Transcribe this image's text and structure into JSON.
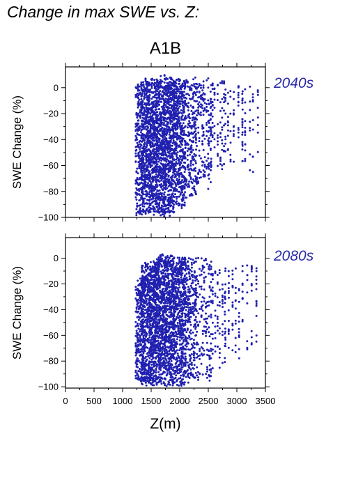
{
  "header": {
    "title": "Change in max SWE vs. Z:",
    "scenario": "A1B"
  },
  "colors": {
    "points": "#2020b0",
    "label": "#2a2aa8",
    "axis": "#000000"
  },
  "chart_data": [
    {
      "type": "scatter",
      "label": "2040s",
      "ylabel": "SWE Change (%)",
      "xlabel": "",
      "xlim": [
        0,
        3500
      ],
      "ylim": [
        -100,
        16
      ],
      "yticks": [
        0,
        -20,
        -40,
        -60,
        -80,
        -100
      ],
      "xticks": [],
      "grid": false,
      "series": [
        {
          "clusters": [
            {
              "x": [
                1230,
                1330
              ],
              "y": [
                -100,
                6
              ],
              "density": 0.75
            },
            {
              "x": [
                1330,
                1600
              ],
              "y": [
                -100,
                8
              ],
              "density": 1.0
            },
            {
              "x": [
                1600,
                1900
              ],
              "y": [
                -100,
                10
              ],
              "density": 1.0
            },
            {
              "x": [
                1900,
                2100
              ],
              "y": [
                -95,
                9
              ],
              "density": 0.85
            },
            {
              "x": [
                2100,
                2300
              ],
              "y": [
                -88,
                9
              ],
              "density": 0.55
            },
            {
              "x": [
                2300,
                2550
              ],
              "y": [
                -80,
                9
              ],
              "density": 0.35
            },
            {
              "x": [
                2550,
                2800
              ],
              "y": [
                -72,
                8
              ],
              "density": 0.2
            },
            {
              "x": [
                2800,
                3100
              ],
              "y": [
                -62,
                8
              ],
              "density": 0.13
            },
            {
              "x": [
                3100,
                3380
              ],
              "y": [
                -78,
                8
              ],
              "density": 0.12
            }
          ]
        }
      ]
    },
    {
      "type": "scatter",
      "label": "2080s",
      "ylabel": "SWE Change (%)",
      "xlabel": "Z(m)",
      "xlim": [
        0,
        3500
      ],
      "ylim": [
        -101,
        16
      ],
      "yticks": [
        0,
        -20,
        -40,
        -60,
        -80,
        -100
      ],
      "xticks": [
        0,
        500,
        1000,
        1500,
        2000,
        2500,
        3000,
        3500
      ],
      "grid": false,
      "series": [
        {
          "clusters": [
            {
              "x": [
                1230,
                1330
              ],
              "y": [
                -100,
                -14
              ],
              "density": 0.7
            },
            {
              "x": [
                1330,
                1600
              ],
              "y": [
                -100,
                -2
              ],
              "density": 1.0
            },
            {
              "x": [
                1600,
                1900
              ],
              "y": [
                -100,
                4
              ],
              "density": 1.0
            },
            {
              "x": [
                1900,
                2100
              ],
              "y": [
                -100,
                2
              ],
              "density": 0.85
            },
            {
              "x": [
                2100,
                2300
              ],
              "y": [
                -98,
                2
              ],
              "density": 0.55
            },
            {
              "x": [
                2300,
                2550
              ],
              "y": [
                -96,
                2
              ],
              "density": 0.35
            },
            {
              "x": [
                2550,
                2800
              ],
              "y": [
                -90,
                -2
              ],
              "density": 0.2
            },
            {
              "x": [
                2800,
                3100
              ],
              "y": [
                -92,
                -4
              ],
              "density": 0.13
            },
            {
              "x": [
                3100,
                3380
              ],
              "y": [
                -90,
                -2
              ],
              "density": 0.12
            }
          ]
        }
      ]
    }
  ]
}
